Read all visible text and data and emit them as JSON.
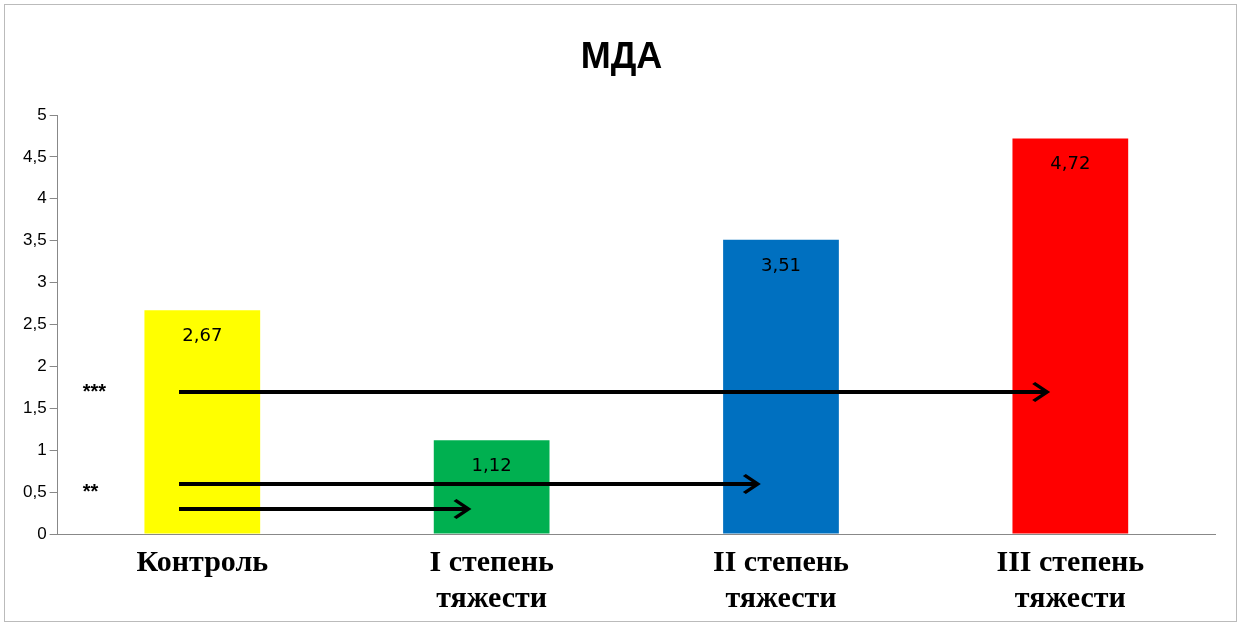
{
  "chart_data": {
    "type": "bar",
    "title": "МДА",
    "categories": [
      "Контроль",
      "I степень тяжести",
      "II степень тяжести",
      "III степень тяжести"
    ],
    "values": [
      2.67,
      1.12,
      3.51,
      4.72
    ],
    "colors": [
      "#ffff00",
      "#00b050",
      "#0070c0",
      "#ff0000"
    ],
    "value_labels": [
      "2,67",
      "1,12",
      "3,51",
      "4,72"
    ],
    "ylim": [
      0,
      5
    ],
    "yticks": [
      0,
      {
        "value": 0.5,
        "label": "0,5"
      },
      1,
      {
        "value": 1.5,
        "label": "1,5"
      },
      2,
      {
        "value": 2.5,
        "label": "2,5"
      },
      3,
      {
        "value": 3.5,
        "label": "3,5"
      },
      4,
      {
        "value": 4.5,
        "label": "4,5"
      },
      5
    ],
    "grid": false,
    "legend": false,
    "annotations": [
      "***",
      "**"
    ]
  }
}
